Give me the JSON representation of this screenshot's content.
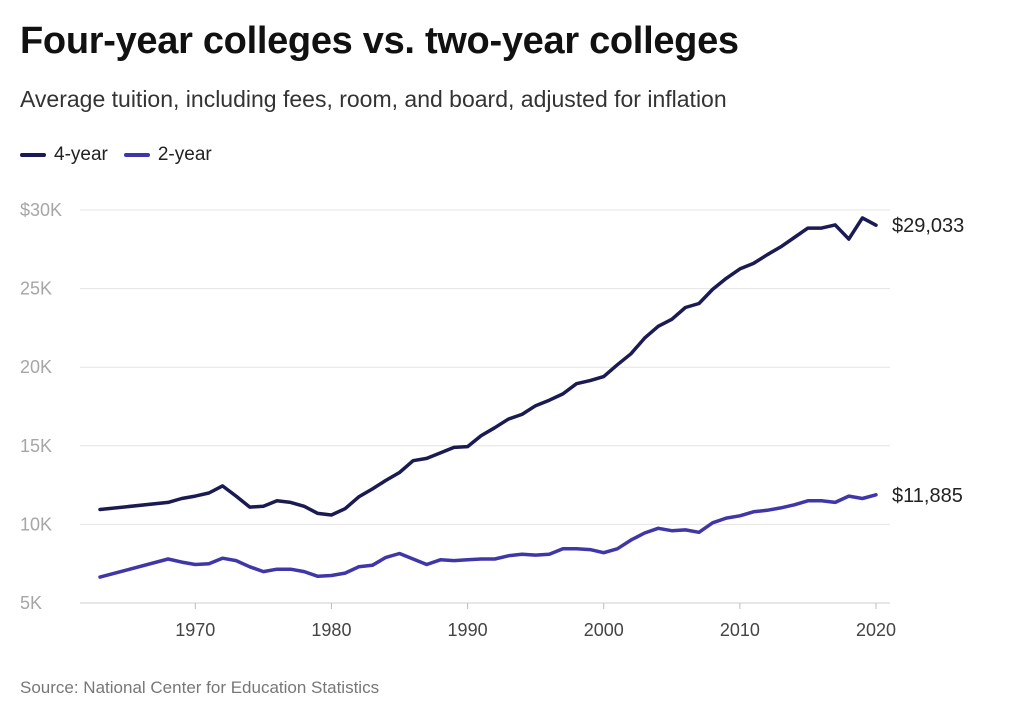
{
  "title": "Four-year colleges vs. two-year colleges",
  "subtitle": "Average tuition, including fees, room, and board, adjusted for inflation",
  "source": "Source: National Center for Education Statistics",
  "colors": {
    "four_year": "#1b1a52",
    "two_year": "#3f37a8",
    "grid": "#e4e4e4"
  },
  "chart_data": {
    "type": "line",
    "title": "Four-year colleges vs. two-year colleges",
    "xlabel": "",
    "ylabel": "",
    "xlim": [
      1963,
      2020
    ],
    "ylim": [
      5000,
      30000
    ],
    "yticks": [
      {
        "value": 5000,
        "label": "5K"
      },
      {
        "value": 10000,
        "label": "10K"
      },
      {
        "value": 15000,
        "label": "15K"
      },
      {
        "value": 20000,
        "label": "20K"
      },
      {
        "value": 25000,
        "label": "25K"
      },
      {
        "value": 30000,
        "label": "$30K"
      }
    ],
    "xticks": [
      {
        "value": 1970,
        "label": "1970"
      },
      {
        "value": 1980,
        "label": "1980"
      },
      {
        "value": 1990,
        "label": "1990"
      },
      {
        "value": 2000,
        "label": "2000"
      },
      {
        "value": 2010,
        "label": "2010"
      },
      {
        "value": 2020,
        "label": "2020"
      }
    ],
    "legend_position": "top-left",
    "series": [
      {
        "name": "4-year",
        "end_label": "$29,033",
        "x": [
          1963,
          1968,
          1969,
          1970,
          1971,
          1972,
          1973,
          1974,
          1975,
          1976,
          1977,
          1978,
          1979,
          1980,
          1981,
          1982,
          1983,
          1984,
          1985,
          1986,
          1987,
          1988,
          1989,
          1990,
          1991,
          1992,
          1993,
          1994,
          1995,
          1996,
          1997,
          1998,
          1999,
          2000,
          2001,
          2002,
          2003,
          2004,
          2005,
          2006,
          2007,
          2008,
          2009,
          2010,
          2011,
          2012,
          2013,
          2014,
          2015,
          2016,
          2017,
          2018,
          2019,
          2020
        ],
        "values": [
          10950,
          11400,
          11650,
          11800,
          12000,
          12450,
          11800,
          11100,
          11150,
          11500,
          11400,
          11150,
          10700,
          10600,
          11000,
          11750,
          12250,
          12800,
          13300,
          14050,
          14200,
          14550,
          14900,
          14950,
          15650,
          16150,
          16700,
          17000,
          17550,
          17900,
          18300,
          18950,
          19150,
          19400,
          20150,
          20850,
          21850,
          22600,
          23050,
          23800,
          24050,
          24950,
          25650,
          26250,
          26600,
          27150,
          27650,
          28250,
          28850,
          28850,
          29050,
          28150,
          29500,
          29033
        ]
      },
      {
        "name": "2-year",
        "end_label": "$11,885",
        "x": [
          1963,
          1968,
          1969,
          1970,
          1971,
          1972,
          1973,
          1974,
          1975,
          1976,
          1977,
          1978,
          1979,
          1980,
          1981,
          1982,
          1983,
          1984,
          1985,
          1986,
          1987,
          1988,
          1989,
          1990,
          1991,
          1992,
          1993,
          1994,
          1995,
          1996,
          1997,
          1998,
          1999,
          2000,
          2001,
          2002,
          2003,
          2004,
          2005,
          2006,
          2007,
          2008,
          2009,
          2010,
          2011,
          2012,
          2013,
          2014,
          2015,
          2016,
          2017,
          2018,
          2019,
          2020
        ],
        "values": [
          6650,
          7800,
          7600,
          7450,
          7500,
          7850,
          7700,
          7300,
          7000,
          7150,
          7150,
          7000,
          6700,
          6750,
          6900,
          7300,
          7400,
          7900,
          8150,
          7800,
          7450,
          7750,
          7700,
          7750,
          7800,
          7800,
          8000,
          8100,
          8050,
          8100,
          8450,
          8450,
          8400,
          8200,
          8450,
          9000,
          9450,
          9750,
          9600,
          9650,
          9500,
          10100,
          10400,
          10550,
          10800,
          10900,
          11050,
          11250,
          11500,
          11500,
          11400,
          11800,
          11650,
          11885
        ]
      }
    ]
  }
}
